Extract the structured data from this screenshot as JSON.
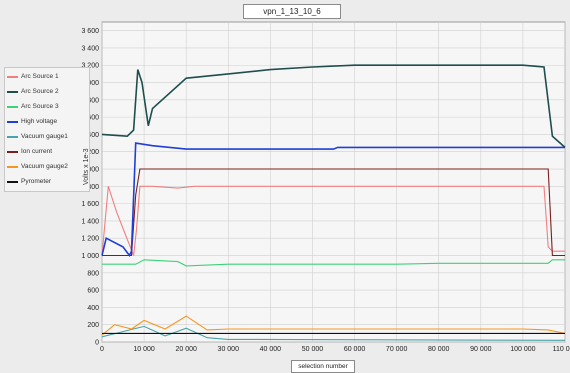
{
  "chart_data": {
    "type": "line",
    "title": "vpn_1_13_10_6",
    "xlabel": "selection number",
    "ylabel": "Volts x 1e-3",
    "xlim": [
      0,
      110000
    ],
    "ylim": [
      0,
      3700
    ],
    "x_ticks": [
      "0",
      "10 000",
      "20 000",
      "30 000",
      "40 000",
      "50 000",
      "60 000",
      "70 000",
      "80 000",
      "90 000",
      "100 000",
      "110 000"
    ],
    "y_ticks": [
      "0",
      "200",
      "400",
      "600",
      "800",
      "1 000",
      "1 200",
      "1 400",
      "1 600",
      "1 800",
      "2 000",
      "2 200",
      "2 400",
      "2 600",
      "2 800",
      "3 000",
      "3 200",
      "3 400",
      "3 600"
    ],
    "grid": true,
    "legend_position": "left",
    "series": [
      {
        "name": "Arc Source 1",
        "color": "#f08080",
        "description": "pulses between ~1000 and ~1800 with spikes to ~2050",
        "x": [
          0,
          1500,
          3500,
          7500,
          8200,
          9000,
          12000,
          18000,
          22000,
          30000,
          40000,
          50000,
          60000,
          70000,
          80000,
          90000,
          100000,
          105000,
          106000,
          107000,
          110000
        ],
        "y": [
          1000,
          1800,
          1500,
          1000,
          1300,
          1800,
          1800,
          1780,
          1800,
          1800,
          1800,
          1800,
          1800,
          1800,
          1800,
          1800,
          1800,
          1800,
          1100,
          1050,
          1050
        ]
      },
      {
        "name": "Arc Source 2",
        "color": "#1f4e4e",
        "description": "oscillating envelope, troughs ~2400, peaks ~3100-3200",
        "x": [
          0,
          6000,
          7500,
          8500,
          9500,
          11000,
          12000,
          20000,
          30000,
          40000,
          50000,
          60000,
          70000,
          80000,
          90000,
          100000,
          105000,
          107000,
          110000
        ],
        "y": [
          2400,
          2380,
          2450,
          3150,
          3000,
          2500,
          2700,
          3050,
          3100,
          3150,
          3180,
          3200,
          3200,
          3200,
          3200,
          3200,
          3180,
          2380,
          2250
        ]
      },
      {
        "name": "Arc Source 3",
        "color": "#3cd27a",
        "x": [
          0,
          7000,
          8000,
          10000,
          18000,
          20000,
          30000,
          40000,
          50000,
          60000,
          70000,
          80000,
          90000,
          100000,
          106000,
          107000,
          110000
        ],
        "y": [
          900,
          900,
          900,
          950,
          930,
          880,
          900,
          900,
          900,
          900,
          900,
          910,
          910,
          910,
          910,
          950,
          950
        ]
      },
      {
        "name": "High voltage",
        "color": "#1f3fd6",
        "x": [
          0,
          1000,
          5000,
          6500,
          7000,
          8000,
          12000,
          20000,
          40000,
          55000,
          56000,
          80000,
          100000,
          106000,
          110000
        ],
        "y": [
          1000,
          1200,
          1100,
          1000,
          1050,
          2300,
          2270,
          2230,
          2230,
          2230,
          2250,
          2250,
          2250,
          2250,
          2250
        ]
      },
      {
        "name": "Vacuum gauge1",
        "color": "#4aa3a8",
        "x": [
          0,
          5000,
          10000,
          15000,
          20000,
          25000,
          30000,
          110000
        ],
        "y": [
          60,
          120,
          180,
          70,
          160,
          50,
          30,
          20
        ]
      },
      {
        "name": "Ion current",
        "color": "#7a1f1f",
        "x": [
          0,
          7000,
          8000,
          9000,
          12000,
          30000,
          60000,
          90000,
          106000,
          107000,
          110000
        ],
        "y": [
          1000,
          1000,
          1700,
          2000,
          2000,
          2000,
          2000,
          2000,
          2000,
          1000,
          1000
        ]
      },
      {
        "name": "Vacuum gauge2",
        "color": "#f5961e",
        "x": [
          0,
          3000,
          7000,
          10000,
          15000,
          20000,
          25000,
          30000,
          40000,
          50000,
          60000,
          70000,
          80000,
          90000,
          100000,
          106000,
          110000
        ],
        "y": [
          80,
          200,
          150,
          250,
          150,
          300,
          140,
          150,
          150,
          150,
          150,
          150,
          150,
          150,
          150,
          140,
          100
        ]
      },
      {
        "name": "Pyrometer",
        "color": "#111111",
        "x": [
          0,
          110000
        ],
        "y": [
          100,
          100
        ]
      }
    ]
  }
}
